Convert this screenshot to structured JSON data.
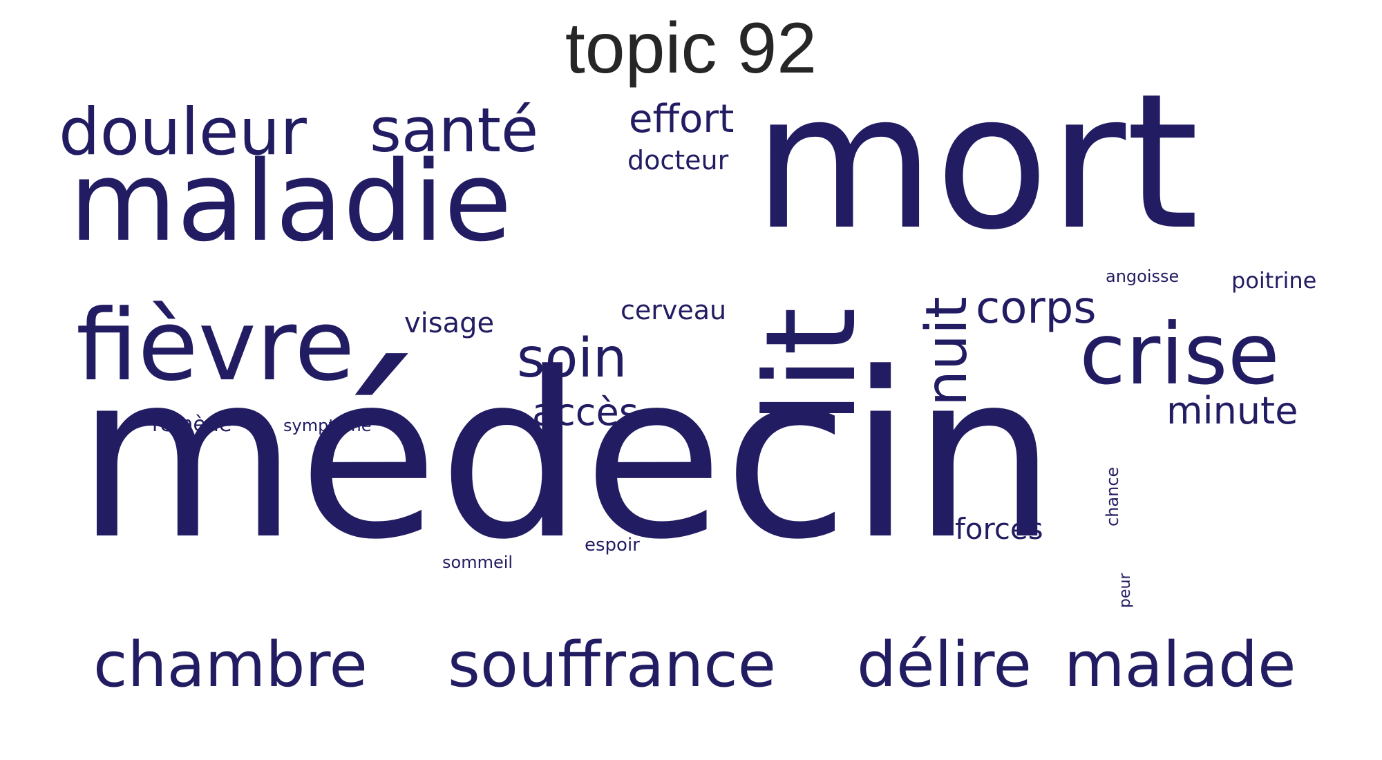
{
  "title": "topic 92",
  "word_color": "#221c62",
  "words": {
    "medecin": "médecin",
    "mort": "mort",
    "maladie": "maladie",
    "fievre": "fièvre",
    "lit": "lit",
    "crise": "crise",
    "douleur": "douleur",
    "sante": "santé",
    "chambre": "chambre",
    "souffrance": "souffrance",
    "delire": "délire",
    "malade": "malade",
    "nuit": "nuit",
    "soin": "soin",
    "corps": "corps",
    "effort": "effort",
    "docteur": "docteur",
    "acces": "accès",
    "minute": "minute",
    "visage": "visage",
    "cerveau": "cerveau",
    "forces": "forces",
    "angoisse": "angoisse",
    "poitrine": "poitrine",
    "remede": "remède",
    "symptome": "symptôme",
    "sommeil": "sommeil",
    "espoir": "espoir",
    "chance": "chance",
    "peur": "peur"
  }
}
